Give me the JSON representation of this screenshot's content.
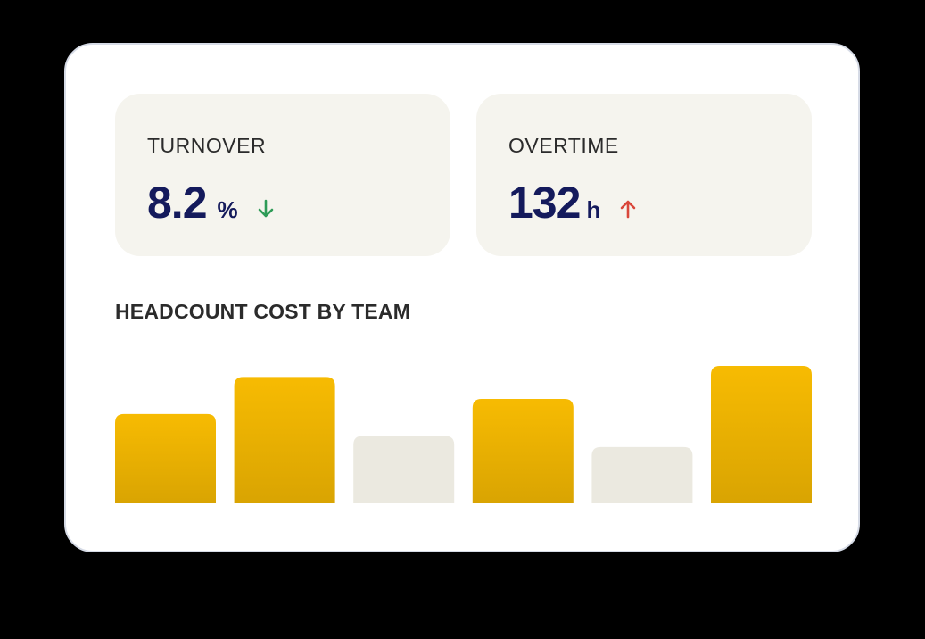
{
  "kpis": {
    "turnover": {
      "label": "TURNOVER",
      "value": "8.2",
      "unit": "%",
      "trend": "down",
      "trend_icon": "arrow-down-icon",
      "trend_color": "#2e9b57"
    },
    "overtime": {
      "label": "OVERTIME",
      "value": "132",
      "unit": "h",
      "trend": "up",
      "trend_icon": "arrow-up-icon",
      "trend_color": "#d9473b"
    }
  },
  "chart_title": "HEADCOUNT COST BY TEAM",
  "chart_data": {
    "type": "bar",
    "categories": [
      "",
      "",
      "",
      "",
      "",
      ""
    ],
    "values": [
      0.65,
      0.92,
      0.49,
      0.76,
      0.41,
      1.0
    ],
    "highlighted": [
      true,
      true,
      false,
      true,
      false,
      true
    ],
    "colors": {
      "highlight_top": "#f7bb02",
      "highlight_bottom": "#d9a402",
      "muted": "#ebe9e0"
    },
    "ylim": [
      0,
      1
    ],
    "grid": false,
    "axes_visible": false
  }
}
